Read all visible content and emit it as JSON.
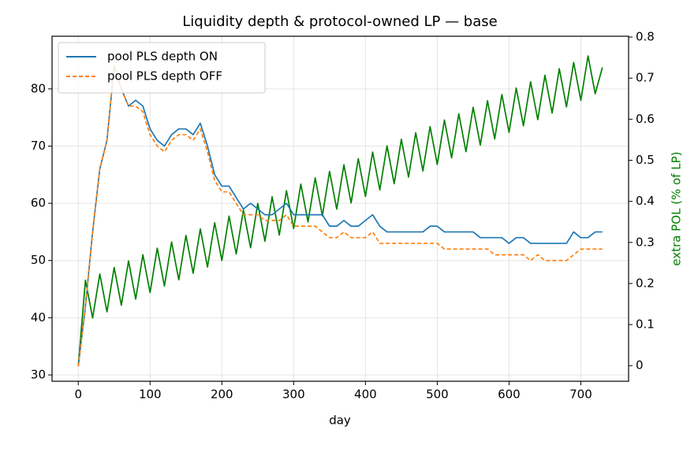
{
  "chart_data": {
    "type": "line",
    "title": "Liquidity depth & protocol-owned LP — base",
    "x_label": "day",
    "y2_label": "extra POL (% of LP)",
    "y2_label_color": "#008000",
    "x": [
      0,
      10,
      20,
      30,
      40,
      50,
      60,
      70,
      80,
      90,
      100,
      110,
      120,
      130,
      140,
      150,
      160,
      170,
      180,
      190,
      200,
      210,
      220,
      230,
      240,
      250,
      260,
      270,
      280,
      290,
      300,
      310,
      320,
      330,
      340,
      350,
      360,
      370,
      380,
      390,
      400,
      410,
      420,
      430,
      440,
      450,
      460,
      470,
      480,
      490,
      500,
      510,
      520,
      530,
      540,
      550,
      560,
      570,
      580,
      590,
      600,
      610,
      620,
      630,
      640,
      650,
      660,
      670,
      680,
      690,
      700,
      710,
      720,
      730
    ],
    "series": [
      {
        "name": "pool PLS depth ON",
        "color": "#1f77b4",
        "linestyle": "solid",
        "values": [
          31.5,
          42,
          55,
          66,
          71,
          84,
          80,
          77,
          78,
          77,
          73,
          71,
          70,
          72,
          73,
          73,
          72,
          74,
          70,
          65,
          63,
          63,
          61,
          59,
          60,
          59,
          58,
          58,
          59,
          60,
          58,
          58,
          58,
          58,
          58,
          56,
          56,
          57,
          56,
          56,
          57,
          58,
          56,
          55,
          55,
          55,
          55,
          55,
          55,
          56,
          56,
          55,
          55,
          55,
          55,
          55,
          54,
          54,
          54,
          54,
          53,
          54,
          54,
          53,
          53,
          53,
          53,
          53,
          53,
          55,
          54,
          54,
          55,
          55
        ]
      },
      {
        "name": "pool PLS depth OFF",
        "color": "#ff7f0e",
        "linestyle": "dashed",
        "values": [
          31.5,
          42,
          55,
          66,
          71,
          84,
          80,
          77,
          77,
          76,
          72,
          70,
          69,
          71,
          72,
          72,
          71,
          73,
          69,
          64,
          62,
          62,
          60,
          58,
          58,
          58,
          57,
          57,
          57,
          58,
          56,
          56,
          56,
          56,
          55,
          54,
          54,
          55,
          54,
          54,
          54,
          55,
          53,
          53,
          53,
          53,
          53,
          53,
          53,
          53,
          53,
          52,
          52,
          52,
          52,
          52,
          52,
          52,
          51,
          51,
          51,
          51,
          51,
          50,
          51,
          50,
          50,
          50,
          50,
          51,
          52,
          52,
          52,
          52
        ]
      },
      {
        "color": "#008000",
        "linestyle": "solid",
        "axis": "y2",
        "values": [
          0,
          0.208,
          0.116,
          0.223,
          0.131,
          0.239,
          0.147,
          0.255,
          0.162,
          0.27,
          0.178,
          0.286,
          0.194,
          0.301,
          0.209,
          0.317,
          0.225,
          0.333,
          0.24,
          0.348,
          0.256,
          0.364,
          0.272,
          0.379,
          0.287,
          0.395,
          0.303,
          0.411,
          0.318,
          0.426,
          0.334,
          0.442,
          0.35,
          0.457,
          0.365,
          0.473,
          0.381,
          0.489,
          0.396,
          0.504,
          0.412,
          0.52,
          0.428,
          0.535,
          0.443,
          0.551,
          0.459,
          0.567,
          0.474,
          0.582,
          0.49,
          0.598,
          0.506,
          0.613,
          0.521,
          0.629,
          0.537,
          0.645,
          0.552,
          0.66,
          0.568,
          0.676,
          0.584,
          0.691,
          0.599,
          0.707,
          0.615,
          0.723,
          0.63,
          0.738,
          0.646,
          0.754,
          0.662,
          0.726
        ]
      }
    ],
    "xlim": [
      -36.5,
      766.5
    ],
    "xticks": [
      0,
      100,
      200,
      300,
      400,
      500,
      600,
      700
    ],
    "ylim": [
      28.9,
      89.2
    ],
    "yticks": [
      30,
      40,
      50,
      60,
      70,
      80
    ],
    "y2lim": [
      -0.038,
      0.802
    ],
    "y2ticks": [
      0,
      0.1,
      0.2,
      0.3,
      0.4,
      0.5,
      0.6,
      0.7,
      0.8
    ],
    "grid": true,
    "legend": "upper-left"
  }
}
